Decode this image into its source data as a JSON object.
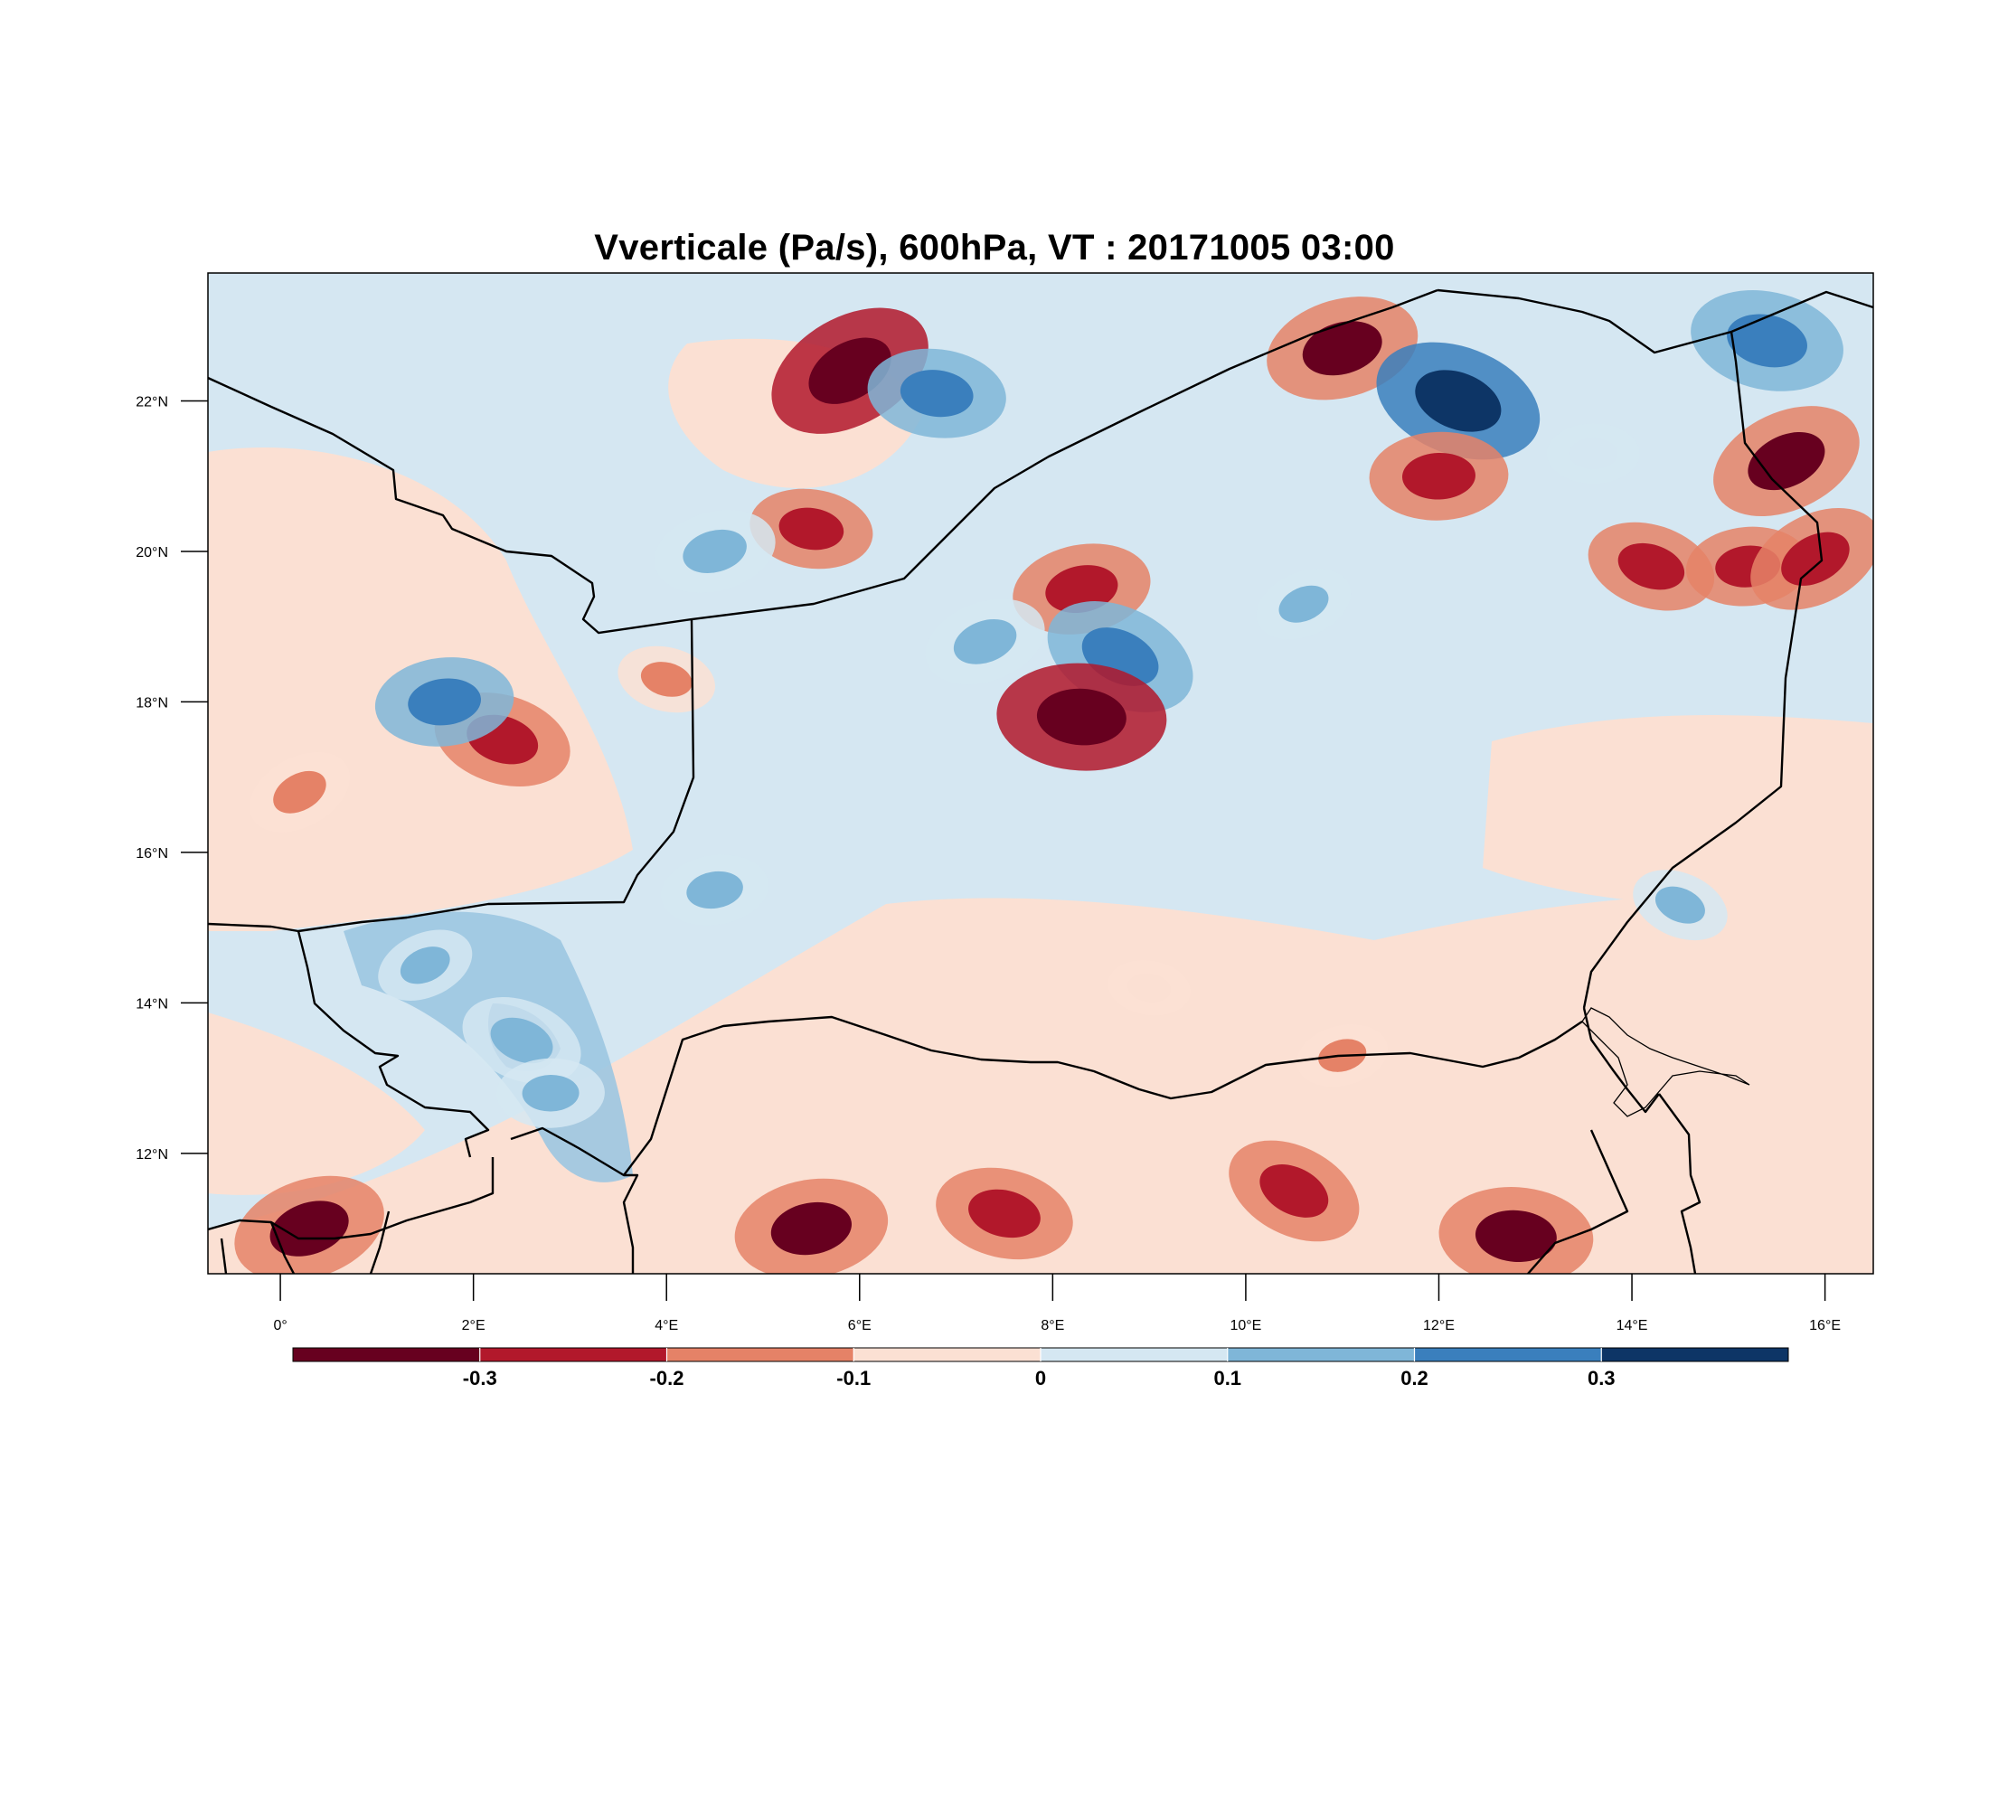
{
  "title": "Vverticale (Pa/s), 600hPa, VT : 20171005  03:00",
  "map": {
    "region": {
      "lon_min": -0.75,
      "lon_max": 16.5,
      "lat_min": 10.4,
      "lat_max": 23.7
    },
    "lon_ticks": [
      {
        "value": 0,
        "label": "0°"
      },
      {
        "value": 2,
        "label": "2°E"
      },
      {
        "value": 4,
        "label": "4°E"
      },
      {
        "value": 6,
        "label": "6°E"
      },
      {
        "value": 8,
        "label": "8°E"
      },
      {
        "value": 10,
        "label": "10°E"
      },
      {
        "value": 12,
        "label": "12°E"
      },
      {
        "value": 14,
        "label": "14°E"
      },
      {
        "value": 16,
        "label": "16°E"
      }
    ],
    "lat_ticks": [
      {
        "value": 12,
        "label": "12°N"
      },
      {
        "value": 14,
        "label": "14°N"
      },
      {
        "value": 16,
        "label": "16°N"
      },
      {
        "value": 18,
        "label": "18°N"
      },
      {
        "value": 20,
        "label": "20°N"
      },
      {
        "value": 22,
        "label": "22°N"
      }
    ]
  },
  "colorbar": {
    "colors": [
      "#67001f",
      "#b2182b",
      "#d6604d",
      "#f4a582",
      "#fddbc7",
      "#d1e5f0",
      "#92c5de",
      "#4393c3",
      "#2166ac",
      "#053061"
    ],
    "bins": [
      {
        "color": "#67001f"
      },
      {
        "color": "#b2182b"
      },
      {
        "color": "#e58267"
      },
      {
        "color": "#fbe0d3"
      },
      {
        "color": "#d5e7f2"
      },
      {
        "color": "#7fb6d8"
      },
      {
        "color": "#3a7fbd"
      },
      {
        "color": "#0d3566"
      }
    ],
    "labels": [
      "-0.3",
      "-0.2",
      "-0.1",
      "0",
      "0.1",
      "0.2",
      "0.3"
    ]
  },
  "chart_data": {
    "type": "heatmap",
    "title": "Vverticale (Pa/s), 600hPa, VT : 20171005  03:00",
    "xlabel": "",
    "ylabel": "",
    "xlim": [
      -0.75,
      16.5
    ],
    "ylim": [
      10.4,
      23.7
    ],
    "levels": [
      -0.3,
      -0.2,
      -0.1,
      0,
      0.1,
      0.2,
      0.3
    ],
    "background_value": 0.05,
    "features": [
      {
        "lon": 5.9,
        "lat": 22.4,
        "value": -0.35
      },
      {
        "lon": 6.8,
        "lat": 22.1,
        "value": 0.25
      },
      {
        "lon": 11.0,
        "lat": 22.7,
        "value": -0.3
      },
      {
        "lon": 12.2,
        "lat": 22.0,
        "value": 0.35
      },
      {
        "lon": 12.0,
        "lat": 21.0,
        "value": -0.25
      },
      {
        "lon": 15.6,
        "lat": 21.2,
        "value": -0.3
      },
      {
        "lon": 15.4,
        "lat": 22.8,
        "value": 0.3
      },
      {
        "lon": 8.3,
        "lat": 19.5,
        "value": -0.25
      },
      {
        "lon": 8.7,
        "lat": 18.6,
        "value": 0.3
      },
      {
        "lon": 8.3,
        "lat": 17.8,
        "value": -0.35
      },
      {
        "lon": 7.3,
        "lat": 18.8,
        "value": 0.2
      },
      {
        "lon": 2.3,
        "lat": 17.5,
        "value": -0.25
      },
      {
        "lon": 1.7,
        "lat": 18.0,
        "value": 0.25
      },
      {
        "lon": 0.2,
        "lat": 16.8,
        "value": -0.15
      },
      {
        "lon": 5.5,
        "lat": 20.3,
        "value": -0.2
      },
      {
        "lon": 4.5,
        "lat": 20.0,
        "value": 0.2
      },
      {
        "lon": 2.5,
        "lat": 13.5,
        "value": 0.2
      },
      {
        "lon": 2.8,
        "lat": 12.8,
        "value": 0.15
      },
      {
        "lon": 1.5,
        "lat": 14.5,
        "value": 0.12
      },
      {
        "lon": 7.5,
        "lat": 11.2,
        "value": -0.25
      },
      {
        "lon": 5.5,
        "lat": 11.0,
        "value": -0.3
      },
      {
        "lon": 10.5,
        "lat": 11.5,
        "value": -0.25
      },
      {
        "lon": 12.8,
        "lat": 10.9,
        "value": -0.3
      },
      {
        "lon": 0.3,
        "lat": 11.0,
        "value": -0.3
      },
      {
        "lon": 14.2,
        "lat": 19.8,
        "value": -0.22
      },
      {
        "lon": 15.2,
        "lat": 19.8,
        "value": -0.2
      },
      {
        "lon": 15.9,
        "lat": 19.9,
        "value": -0.25
      },
      {
        "lon": 9.0,
        "lat": 14.2,
        "value": -0.07
      },
      {
        "lon": 11.0,
        "lat": 13.3,
        "value": -0.1
      },
      {
        "lon": 14.5,
        "lat": 15.3,
        "value": 0.12
      },
      {
        "lon": 13.6,
        "lat": 21.3,
        "value": 0.1
      },
      {
        "lon": 10.6,
        "lat": 19.3,
        "value": 0.12
      },
      {
        "lon": 4.0,
        "lat": 18.3,
        "value": -0.12
      },
      {
        "lon": 4.5,
        "lat": 15.5,
        "value": 0.15
      }
    ]
  }
}
